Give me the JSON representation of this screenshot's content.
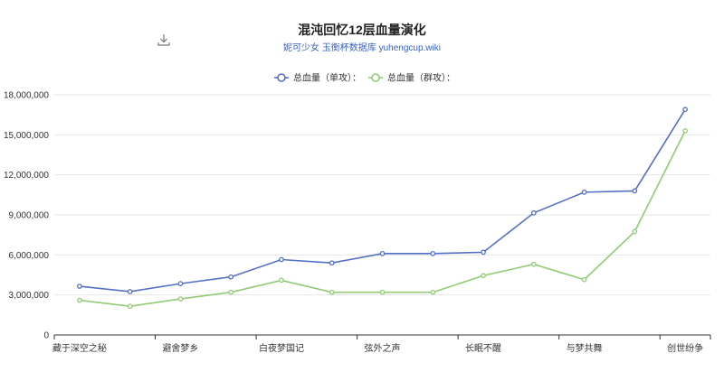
{
  "chart_data": {
    "type": "line",
    "title": "混沌回忆12层血量演化",
    "subtitle": "妮可少女 玉衡杯数据库 yuhengcup.wiki",
    "categories": [
      "藏于深空之秘",
      "",
      "避舍梦乡",
      "",
      "白夜梦国记",
      "",
      "弦外之声",
      "",
      "长眠不醒",
      "",
      "与梦共舞",
      "",
      "创世纷争"
    ],
    "x_tick_labels": [
      "藏于深空之秘",
      "避舍梦乡",
      "白夜梦国记",
      "弦外之声",
      "长眠不醒",
      "与梦共舞",
      "创世纷争"
    ],
    "y_tick_labels": [
      "0",
      "3,000,000",
      "6,000,000",
      "9,000,000",
      "12,000,000",
      "15,000,000",
      "18,000,000"
    ],
    "ylim": [
      0,
      18000000
    ],
    "yticks": [
      0,
      3000000,
      6000000,
      9000000,
      12000000,
      15000000,
      18000000
    ],
    "grid": true,
    "legend_position": "top-center",
    "series": [
      {
        "name": "总血量（单攻）：",
        "color": "#5470c6",
        "values": [
          3650000,
          3250000,
          3850000,
          4350000,
          5650000,
          5400000,
          6100000,
          6100000,
          6200000,
          9150000,
          10700000,
          10800000,
          16900000
        ]
      },
      {
        "name": "总血量（群攻）：",
        "color": "#91cc75",
        "values": [
          2600000,
          2150000,
          2700000,
          3200000,
          4100000,
          3200000,
          3200000,
          3200000,
          4450000,
          5300000,
          4150000,
          7750000,
          15300000
        ]
      }
    ]
  },
  "toolbar": {
    "download_icon": "download-icon"
  }
}
